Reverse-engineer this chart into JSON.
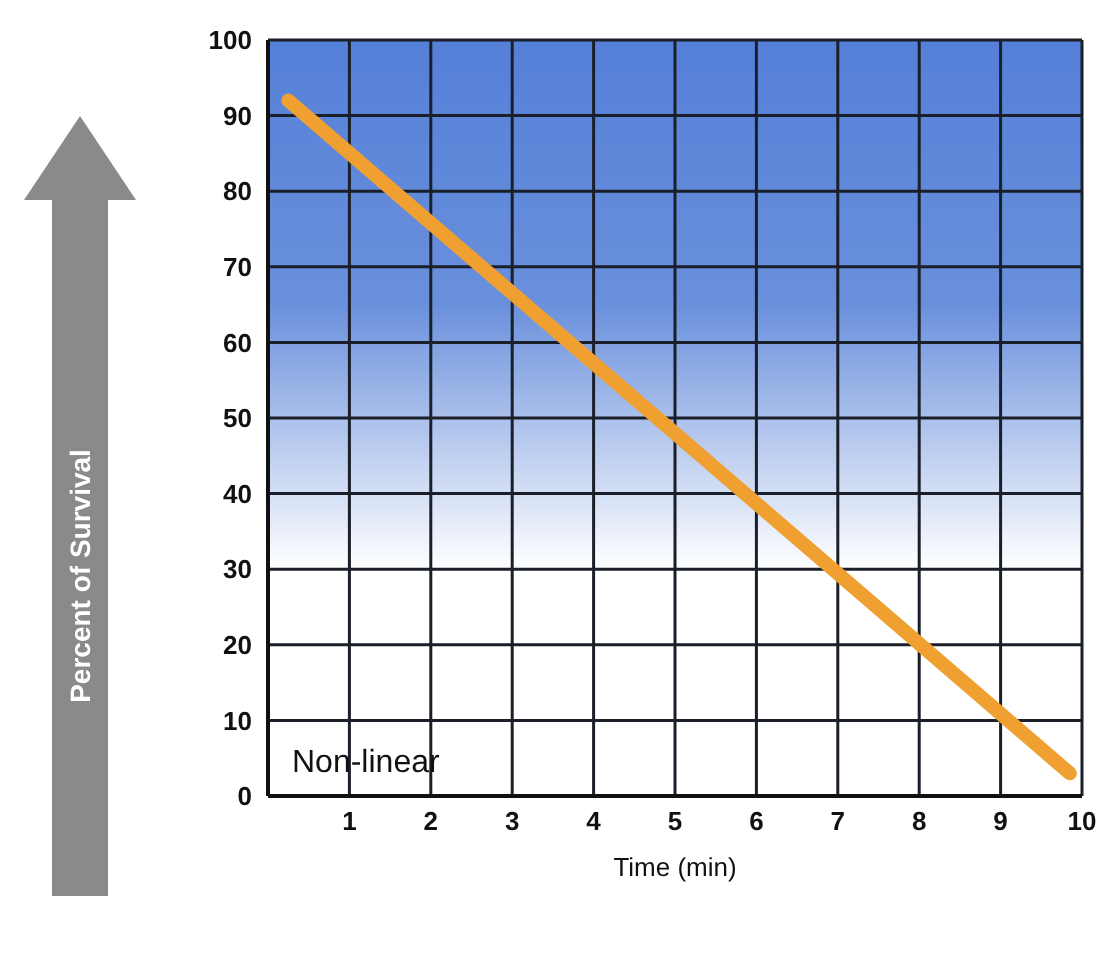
{
  "chart_data": {
    "type": "line",
    "xlabel": "Time (min)",
    "ylabel": "Percent of Survival",
    "x": [
      0.25,
      9.85
    ],
    "series": [
      {
        "color": "#f0a030",
        "values": [
          92,
          3
        ]
      }
    ],
    "xlim": [
      0,
      10
    ],
    "xticks": [
      1,
      2,
      3,
      4,
      5,
      6,
      7,
      8,
      9,
      10
    ],
    "ylim": [
      0,
      100
    ],
    "yticks": [
      0,
      10,
      20,
      30,
      40,
      50,
      60,
      70,
      80,
      90,
      100
    ],
    "grid": true,
    "marker": "none",
    "line_style": "solid",
    "annotations": [
      {
        "text": "Non-linear"
      }
    ]
  }
}
